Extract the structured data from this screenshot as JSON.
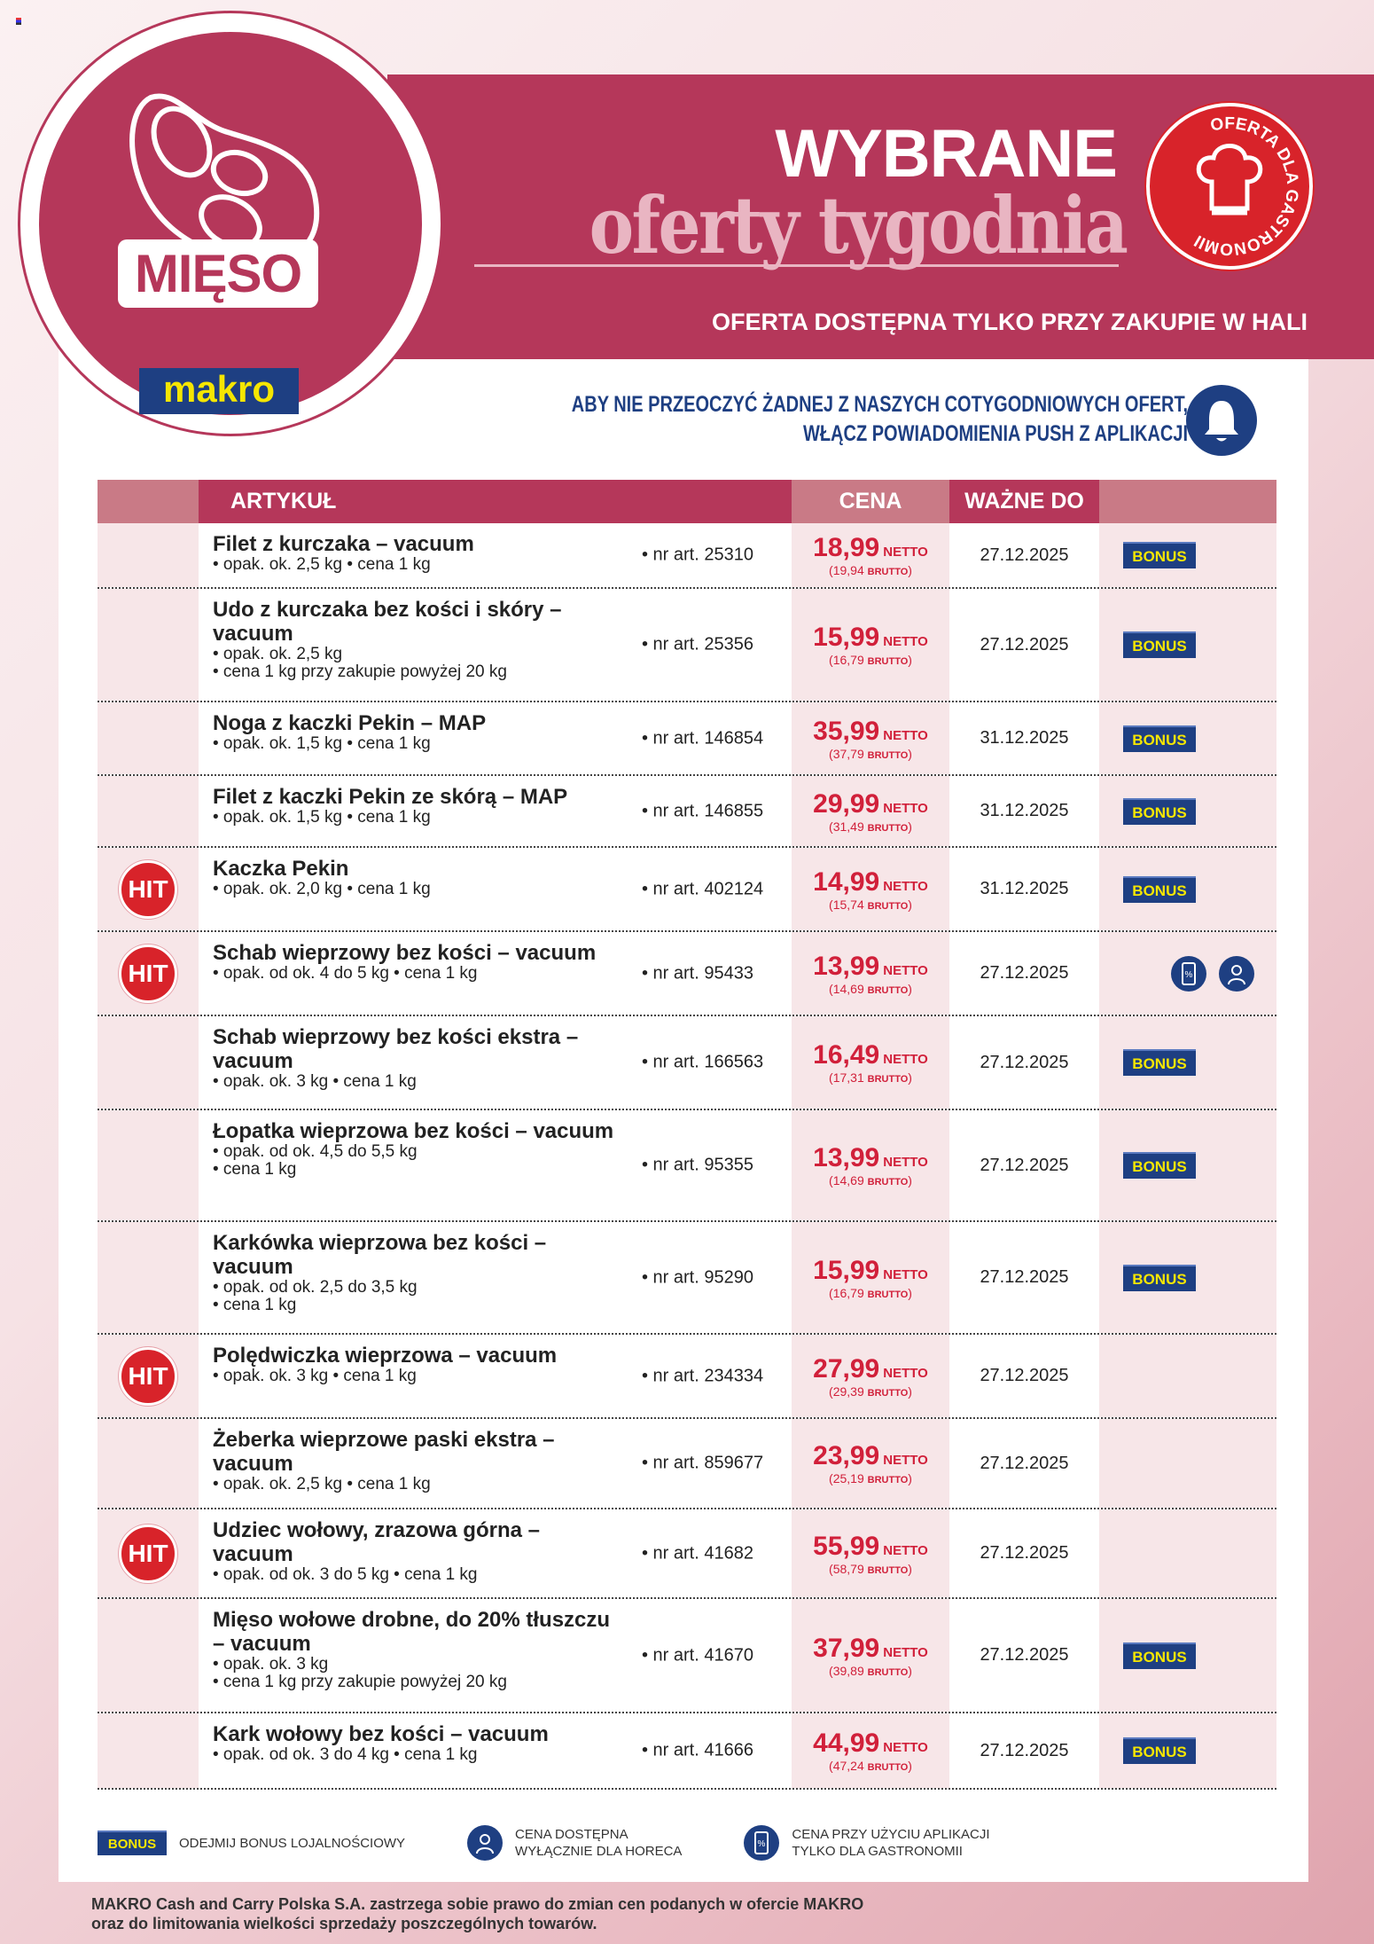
{
  "header": {
    "category": "MIĘSO",
    "logo": "makro",
    "title_top": "WYBRANE",
    "title_bottom": "oferty tygodnia",
    "badge": "OFERTA DLA GASTRONOMII",
    "availability": "OFERTA DOSTĘPNA TYLKO PRZY ZAKUPIE W HALI",
    "push_line1": "ABY NIE PRZEOCZYĆ ŻADNEJ Z NASZYCH COTYGODNIOWYCH OFERT,",
    "push_line2": "WŁĄCZ POWIADOMIENIA PUSH Z APLIKACJI"
  },
  "colors": {
    "brand": "#b5375a",
    "price": "#d1203a",
    "navy": "#1e3f82",
    "yellow": "#f5e600"
  },
  "table": {
    "headers": {
      "article": "ARTYKUŁ",
      "price": "CENA",
      "valid": "WAŻNE DO"
    },
    "netto": "NETTO",
    "brutto": "BRUTTO",
    "hit": "HIT",
    "bonus": "BONUS",
    "rows": [
      {
        "hit": false,
        "name": "Filet z kurczaka – vacuum",
        "details": [
          "• opak. ok. 2,5 kg • cena 1 kg"
        ],
        "art": "• nr art. 25310",
        "price": "18,99",
        "brutto": "19,94",
        "valid": "27.12.2025",
        "badge": "bonus"
      },
      {
        "hit": false,
        "name": "Udo z kurczaka bez kości i skóry – vacuum",
        "details": [
          "• opak. ok. 2,5 kg",
          "• cena 1 kg przy zakupie powyżej 20 kg"
        ],
        "art": "• nr art. 25356",
        "price": "15,99",
        "brutto": "16,79",
        "valid": "27.12.2025",
        "badge": "bonus"
      },
      {
        "hit": false,
        "name": "Noga z kaczki Pekin – MAP",
        "details": [
          "• opak. ok. 1,5 kg • cena 1 kg"
        ],
        "art": "• nr art. 146854",
        "price": "35,99",
        "brutto": "37,79",
        "valid": "31.12.2025",
        "badge": "bonus"
      },
      {
        "hit": false,
        "name": "Filet z kaczki Pekin ze skórą – MAP",
        "details": [
          "• opak. ok. 1,5 kg • cena 1 kg"
        ],
        "art": "• nr art. 146855",
        "price": "29,99",
        "brutto": "31,49",
        "valid": "31.12.2025",
        "badge": "bonus"
      },
      {
        "hit": true,
        "name": "Kaczka Pekin",
        "details": [
          "• opak. ok. 2,0 kg • cena 1 kg"
        ],
        "art": "• nr art. 402124",
        "price": "14,99",
        "brutto": "15,74",
        "valid": "31.12.2025",
        "badge": "bonus"
      },
      {
        "hit": true,
        "name": "Schab wieprzowy bez kości – vacuum",
        "details": [
          "• opak. od ok. 4 do 5 kg • cena 1 kg"
        ],
        "art": "• nr art. 95433",
        "price": "13,99",
        "brutto": "14,69",
        "valid": "27.12.2025",
        "badge": "icons"
      },
      {
        "hit": false,
        "name": "Schab wieprzowy bez kości ekstra – vacuum",
        "details": [
          "• opak. ok. 3 kg • cena 1 kg"
        ],
        "art": "• nr art. 166563",
        "price": "16,49",
        "brutto": "17,31",
        "valid": "27.12.2025",
        "badge": "bonus"
      },
      {
        "hit": false,
        "name": "Łopatka wieprzowa bez kości – vacuum",
        "details": [
          "• opak. od ok. 4,5 do 5,5 kg",
          "• cena 1 kg"
        ],
        "art": "• nr art. 95355",
        "price": "13,99",
        "brutto": "14,69",
        "valid": "27.12.2025",
        "badge": "bonus"
      },
      {
        "hit": false,
        "name": "Karkówka wieprzowa bez kości – vacuum",
        "details": [
          "• opak. od ok. 2,5 do 3,5 kg",
          "• cena 1 kg"
        ],
        "art": "• nr art. 95290",
        "price": "15,99",
        "brutto": "16,79",
        "valid": "27.12.2025",
        "badge": "bonus"
      },
      {
        "hit": true,
        "name": "Polędwiczka wieprzowa – vacuum",
        "details": [
          "• opak. ok. 3 kg • cena 1 kg"
        ],
        "art": "• nr art. 234334",
        "price": "27,99",
        "brutto": "29,39",
        "valid": "27.12.2025",
        "badge": "none"
      },
      {
        "hit": false,
        "name": "Żeberka wieprzowe paski ekstra – vacuum",
        "details": [
          "• opak. ok. 2,5 kg • cena 1 kg"
        ],
        "art": "• nr art. 859677",
        "price": "23,99",
        "brutto": "25,19",
        "valid": "27.12.2025",
        "badge": "none"
      },
      {
        "hit": true,
        "name": "Udziec wołowy, zrazowa górna – vacuum",
        "details": [
          "• opak. od ok. 3 do 5 kg • cena 1 kg"
        ],
        "art": "• nr art. 41682",
        "price": "55,99",
        "brutto": "58,79",
        "valid": "27.12.2025",
        "badge": "none"
      },
      {
        "hit": false,
        "name": "Mięso wołowe drobne, do 20% tłuszczu – vacuum",
        "details": [
          "• opak. ok. 3 kg",
          "• cena 1 kg przy zakupie powyżej 20 kg"
        ],
        "art": "• nr art. 41670",
        "price": "37,99",
        "brutto": "39,89",
        "valid": "27.12.2025",
        "badge": "bonus"
      },
      {
        "hit": false,
        "name": "Kark wołowy bez kości – vacuum",
        "details": [
          "• opak. od ok. 3 do 4 kg • cena 1 kg"
        ],
        "art": "• nr art. 41666",
        "price": "44,99",
        "brutto": "47,24",
        "valid": "27.12.2025",
        "badge": "bonus"
      }
    ]
  },
  "legend": {
    "bonus_label": "BONUS",
    "bonus_text": "ODEJMIJ BONUS LOJALNOŚCIOWY",
    "horeca_line1": "CENA DOSTĘPNA",
    "horeca_line2": "WYŁĄCZNIE DLA HORECA",
    "app_line1": "CENA PRZY UŻYCIU APLIKACJI",
    "app_line2": "TYLKO DLA GASTRONOMII"
  },
  "footer": {
    "line1": "MAKRO Cash and Carry Polska S.A. zastrzega sobie prawo do zmian cen podanych w ofercie MAKRO",
    "line2": "oraz do limitowania wielkości sprzedaży poszczególnych towarów."
  }
}
